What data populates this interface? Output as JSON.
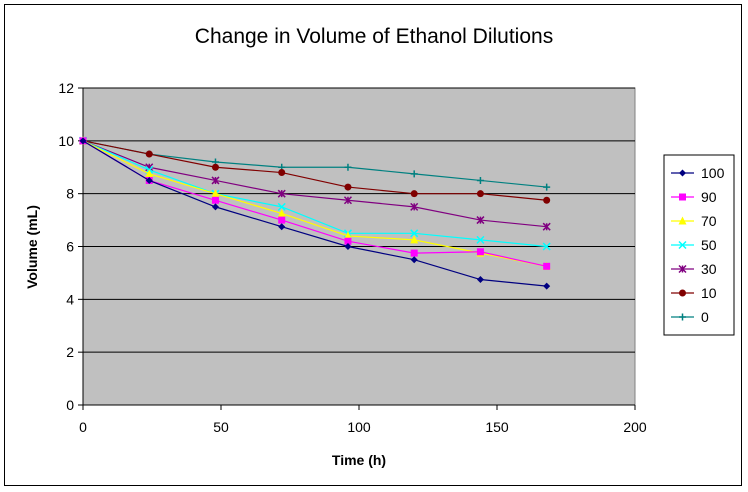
{
  "chart_data": {
    "type": "line",
    "title": "Change in Volume of Ethanol Dilutions",
    "xlabel": "Time (h)",
    "ylabel": "Volume (mL)",
    "xlim": [
      0,
      200
    ],
    "ylim": [
      0,
      12
    ],
    "xticks": [
      0,
      50,
      100,
      150,
      200
    ],
    "yticks": [
      0,
      2,
      4,
      6,
      8,
      10,
      12
    ],
    "grid": "horizontal",
    "legend_position": "right",
    "plot_background": "#c0c0c0",
    "x": [
      0,
      24,
      48,
      72,
      96,
      120,
      144,
      168
    ],
    "series": [
      {
        "name": "100",
        "color": "#000080",
        "marker": "diamond",
        "values": [
          10,
          8.5,
          7.5,
          6.75,
          6.0,
          5.5,
          4.75,
          4.5
        ]
      },
      {
        "name": "90",
        "color": "#ff00ff",
        "marker": "square",
        "values": [
          10,
          8.5,
          7.75,
          7.0,
          6.2,
          5.75,
          5.8,
          5.25
        ]
      },
      {
        "name": "70",
        "color": "#ffff00",
        "marker": "triangle",
        "values": [
          10,
          8.75,
          8.0,
          7.25,
          6.4,
          6.25,
          5.75,
          5.25
        ]
      },
      {
        "name": "50",
        "color": "#00ffff",
        "marker": "x",
        "values": [
          10,
          8.9,
          8.0,
          7.5,
          6.5,
          6.5,
          6.25,
          6.0
        ]
      },
      {
        "name": "30",
        "color": "#800080",
        "marker": "star",
        "values": [
          10,
          9.0,
          8.5,
          8.0,
          7.75,
          7.5,
          7.0,
          6.75
        ]
      },
      {
        "name": "10",
        "color": "#800000",
        "marker": "circle",
        "values": [
          10,
          9.5,
          9.0,
          8.8,
          8.25,
          8.0,
          8.0,
          7.75
        ]
      },
      {
        "name": "0",
        "color": "#008080",
        "marker": "plus",
        "values": [
          10,
          9.5,
          9.2,
          9.0,
          9.0,
          8.75,
          8.5,
          8.25
        ]
      }
    ]
  }
}
